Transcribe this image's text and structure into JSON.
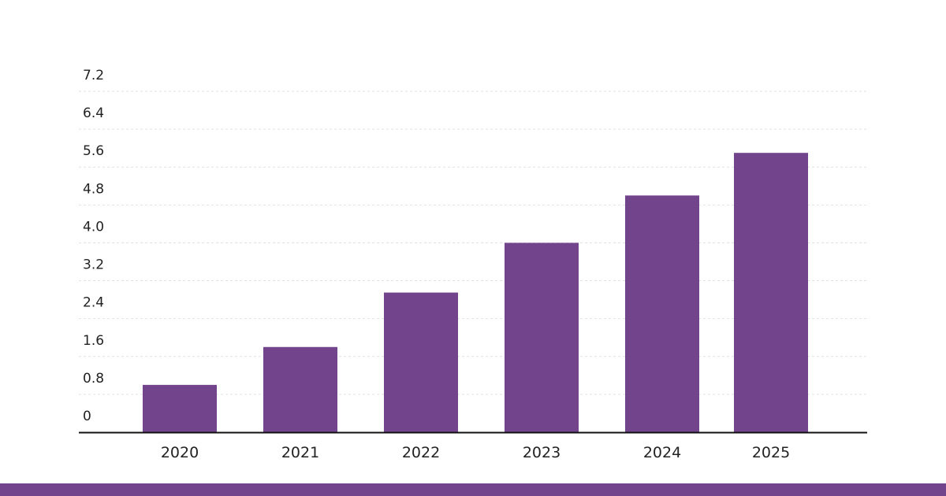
{
  "chart_data": {
    "type": "bar",
    "categories": [
      "2020",
      "2021",
      "2022",
      "2023",
      "2024",
      "2025"
    ],
    "values": [
      1.0,
      1.8,
      2.95,
      4.0,
      5.0,
      5.9
    ],
    "yticks": [
      "0",
      "0.8",
      "1.6",
      "2.4",
      "3.2",
      "4.0",
      "4.8",
      "5.6",
      "6.4",
      "7.2"
    ],
    "ylim": [
      0,
      7.2
    ],
    "title": "",
    "xlabel": "",
    "ylabel": "",
    "grid": true,
    "legend": "none"
  },
  "colors": {
    "bar": "#71448b",
    "footer": "#71448b",
    "grid": "#e2e2e2",
    "axis": "#111111"
  }
}
